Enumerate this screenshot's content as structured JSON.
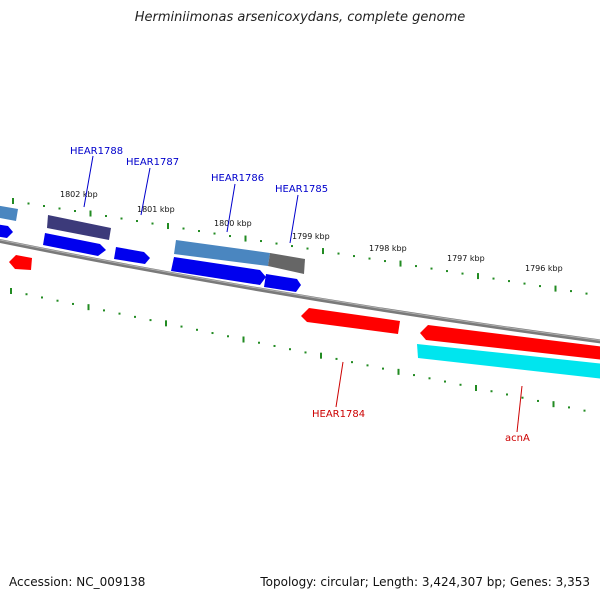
{
  "title": "Herminiimonas arsenicoxydans, complete genome",
  "accession": "Accession: NC_009138",
  "summary": "Topology: circular; Length: 3,424,307 bp; Genes: 3,353",
  "ticks": [
    {
      "label": "1802 kbp"
    },
    {
      "label": "1801 kbp"
    },
    {
      "label": "1800 kbp"
    },
    {
      "label": "1799 kbp"
    },
    {
      "label": "1798 kbp"
    },
    {
      "label": "1797 kbp"
    },
    {
      "label": "1796 kbp"
    }
  ],
  "gene_labels": [
    {
      "name": "HEAR1788",
      "color": "#0000cc"
    },
    {
      "name": "HEAR1787",
      "color": "#0000cc"
    },
    {
      "name": "HEAR1786",
      "color": "#0000cc"
    },
    {
      "name": "HEAR1785",
      "color": "#0000cc"
    },
    {
      "name": "HEAR1784",
      "color": "#cc0000"
    },
    {
      "name": "acnA",
      "color": "#cc0000"
    }
  ],
  "colors": {
    "backbone": "#808080",
    "tick": "#228b22",
    "forward_gene": "#0000ee",
    "forward_gene_alt": "#4a86c0",
    "forward_gene_dark": "#3c3a7a",
    "forward_gene_grey": "#707070",
    "reverse_gene": "#ff0000",
    "reverse_gene_alt": "#00e5ee"
  }
}
